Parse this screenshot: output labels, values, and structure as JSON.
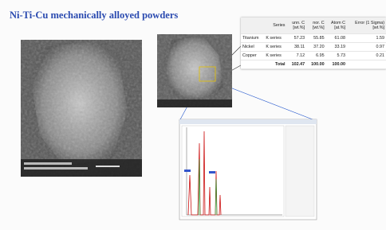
{
  "header": {
    "title": "Ni-Ti-Cu mechanically alloyed powders"
  },
  "table": {
    "header": [
      [
        "",
        ""
      ],
      [
        "Series",
        ""
      ],
      [
        "unn. C",
        "[wt.%]"
      ],
      [
        "nor. C",
        "[wt.%]"
      ],
      [
        "Atom C",
        "[at.%]"
      ],
      [
        "Error (1 Sigma)",
        "[wt.%]"
      ]
    ],
    "rows": [
      [
        "Titanium",
        "K series",
        "57.23",
        "55.85",
        "61.08",
        "1.59"
      ],
      [
        "Nickel",
        "K series",
        "38.11",
        "37.20",
        "33.19",
        "0.97"
      ],
      [
        "Copper",
        "K series",
        "7.12",
        "6.95",
        "5.73",
        "0.21"
      ]
    ],
    "total": [
      "Total",
      "102.47",
      "100.00",
      "100.00"
    ]
  }
}
